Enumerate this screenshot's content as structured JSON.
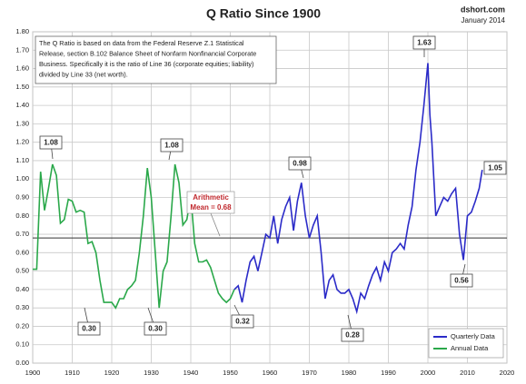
{
  "chart_data": {
    "type": "line",
    "title": "Q Ratio Since 1900",
    "source": "dshort.com",
    "date": "January 2014",
    "note": [
      "The Q Ratio is based on data from the Federal Reserve Z.1 Statistical",
      "Release, section B.102 Balance Sheet of Nonfarm Nonfinancial Corporate",
      "Business. Specifically it is the ratio of Line 36 (corporate equities; liability)",
      "divided by Line 33 (net worth)."
    ],
    "mean": 0.68,
    "mean_label": [
      "Arithmetic",
      "Mean = 0.68"
    ],
    "annotations": [
      "1.08",
      "1.08",
      "0.98",
      "1.63",
      "1.05",
      "0.30",
      "0.30",
      "0.32",
      "0.28",
      "0.56"
    ],
    "xlim": [
      1900,
      2020
    ],
    "xticks": [
      1900,
      1910,
      1920,
      1930,
      1940,
      1950,
      1960,
      1970,
      1980,
      1990,
      2000,
      2010,
      2020
    ],
    "ylim": [
      0,
      1.8
    ],
    "yticks": [
      {
        "value": 0,
        "label": "0.00"
      },
      {
        "value": 0.1,
        "label": "0.10"
      },
      {
        "value": 0.2,
        "label": "0.20"
      },
      {
        "value": 0.3,
        "label": "0.30"
      },
      {
        "value": 0.4,
        "label": "0.40"
      },
      {
        "value": 0.5,
        "label": "0.50"
      },
      {
        "value": 0.6,
        "label": "0.60"
      },
      {
        "value": 0.7,
        "label": "0.70"
      },
      {
        "value": 0.8,
        "label": "0.80"
      },
      {
        "value": 0.9,
        "label": "0.90"
      },
      {
        "value": 1,
        "label": "1.00"
      },
      {
        "value": 1.1,
        "label": "1.10"
      },
      {
        "value": 1.2,
        "label": "1.20"
      },
      {
        "value": 1.3,
        "label": "1.30"
      },
      {
        "value": 1.4,
        "label": "1.40"
      },
      {
        "value": 1.5,
        "label": "1.50"
      },
      {
        "value": 1.6,
        "label": "1.60"
      },
      {
        "value": 1.7,
        "label": "1.70"
      },
      {
        "value": 1.8,
        "label": "1.80"
      }
    ],
    "grid": true,
    "legend": "lower right",
    "series": [
      {
        "name": "Quarterly Data",
        "color": "#2b2bc8",
        "x": [
          1951,
          1952,
          1953,
          1954,
          1955,
          1956,
          1957,
          1958,
          1959,
          1960,
          1961,
          1962,
          1963,
          1964,
          1965,
          1966,
          1967,
          1968,
          1969,
          1970,
          1971,
          1972,
          1973,
          1974,
          1975,
          1976,
          1977,
          1978,
          1979,
          1980,
          1981,
          1982,
          1983,
          1984,
          1985,
          1986,
          1987,
          1988,
          1989,
          1990,
          1991,
          1992,
          1993,
          1994,
          1995,
          1996,
          1997,
          1998,
          1999,
          2000,
          2000.5,
          2001,
          2002,
          2003,
          2004,
          2005,
          2006,
          2007,
          2008,
          2009,
          2010,
          2011,
          2012,
          2013,
          2013.75
        ],
        "values": [
          0.4,
          0.42,
          0.33,
          0.45,
          0.55,
          0.58,
          0.5,
          0.6,
          0.7,
          0.68,
          0.8,
          0.65,
          0.78,
          0.85,
          0.9,
          0.72,
          0.88,
          0.98,
          0.8,
          0.68,
          0.75,
          0.8,
          0.6,
          0.35,
          0.45,
          0.48,
          0.4,
          0.38,
          0.38,
          0.4,
          0.35,
          0.28,
          0.38,
          0.35,
          0.42,
          0.48,
          0.52,
          0.45,
          0.55,
          0.5,
          0.6,
          0.62,
          0.65,
          0.62,
          0.75,
          0.85,
          1.05,
          1.2,
          1.4,
          1.63,
          1.35,
          1.2,
          0.8,
          0.85,
          0.9,
          0.88,
          0.92,
          0.95,
          0.7,
          0.56,
          0.8,
          0.82,
          0.88,
          0.95,
          1.05
        ]
      },
      {
        "name": "Annual Data",
        "color": "#2aa84a",
        "x": [
          1900,
          1901,
          1902,
          1903,
          1904,
          1905,
          1906,
          1907,
          1908,
          1909,
          1910,
          1911,
          1912,
          1913,
          1914,
          1915,
          1916,
          1917,
          1918,
          1919,
          1920,
          1921,
          1922,
          1923,
          1924,
          1925,
          1926,
          1927,
          1928,
          1929,
          1930,
          1931,
          1932,
          1933,
          1934,
          1935,
          1936,
          1937,
          1938,
          1939,
          1940,
          1941,
          1942,
          1943,
          1944,
          1945,
          1946,
          1947,
          1948,
          1949,
          1950,
          1951
        ],
        "values": [
          0.51,
          0.51,
          1.04,
          0.83,
          0.95,
          1.08,
          1.02,
          0.76,
          0.78,
          0.89,
          0.88,
          0.82,
          0.83,
          0.82,
          0.65,
          0.66,
          0.6,
          0.45,
          0.33,
          0.33,
          0.33,
          0.3,
          0.35,
          0.35,
          0.4,
          0.42,
          0.45,
          0.6,
          0.8,
          1.06,
          0.9,
          0.6,
          0.3,
          0.5,
          0.55,
          0.8,
          1.08,
          0.98,
          0.75,
          0.78,
          0.91,
          0.65,
          0.55,
          0.55,
          0.56,
          0.52,
          0.45,
          0.38,
          0.35,
          0.33,
          0.35,
          0.4
        ]
      }
    ]
  }
}
